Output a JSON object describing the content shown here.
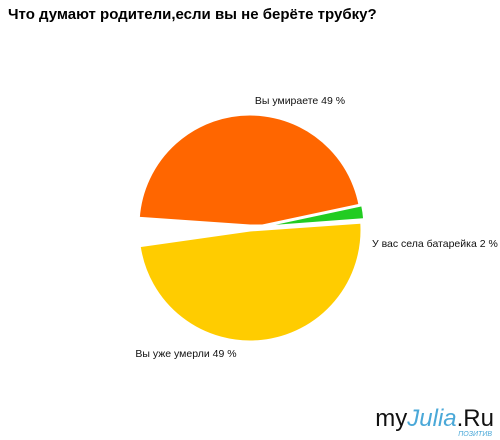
{
  "chart_data": {
    "type": "pie",
    "title": "Что думают родители,если вы не берёте трубку?",
    "slices": [
      {
        "label": "Вы умираете 49 %",
        "value": 49,
        "color": "#ff6600"
      },
      {
        "label": "У вас села батарейка 2 %",
        "value": 2,
        "color": "#22cc22"
      },
      {
        "label": "Вы уже умерли 49 %",
        "value": 49,
        "color": "#ffcc00"
      }
    ],
    "legend": "none"
  },
  "logo": {
    "my": "my",
    "julia": "Julia",
    "ru": ".Ru",
    "tag": "ПОЗИТИВ"
  }
}
